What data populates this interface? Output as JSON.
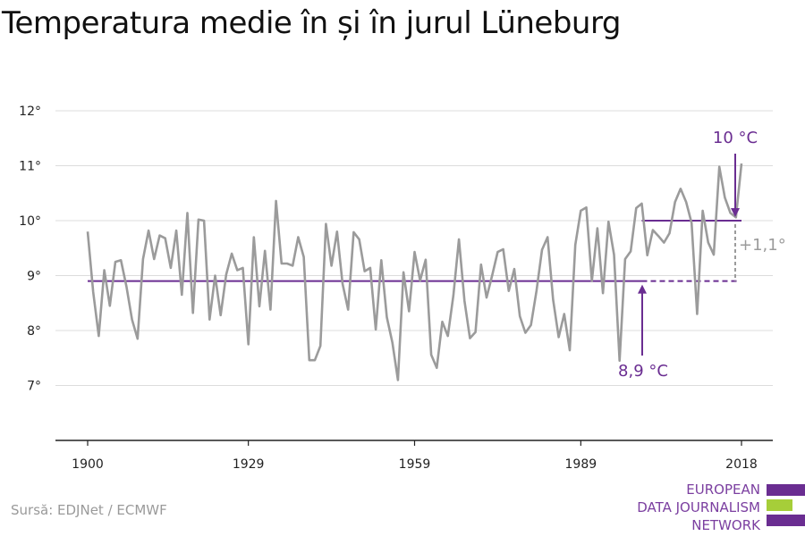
{
  "title": "Temperatura medie în și în jurul Lüneburg",
  "source": "Sursă: EDJNet / ECMWF",
  "logo": {
    "lines": [
      "EUROPEAN",
      "DATA JOURNALISM",
      "NETWORK"
    ]
  },
  "colors": {
    "series": "#9b9b9b",
    "accent": "#6a2d91",
    "grid": "#dcdcdc",
    "axis": "#222222",
    "logo_green": "#a6ce39"
  },
  "chart_data": {
    "type": "line",
    "title": "Temperatura medie în și în jurul Lüneburg",
    "xlabel": "",
    "ylabel": "",
    "xlim": [
      1900,
      2018
    ],
    "ylim": [
      6,
      12
    ],
    "xticks": [
      1900,
      1929,
      1959,
      1989,
      2018
    ],
    "yticks": [
      7,
      8,
      9,
      10,
      11,
      12
    ],
    "ytick_labels": [
      "7°",
      "8°",
      "9°",
      "10°",
      "11°",
      "12°"
    ],
    "grid": true,
    "series": [
      {
        "values_x": [
          1900,
          1901,
          1902,
          1903,
          1904,
          1905,
          1906,
          1907,
          1908,
          1909,
          1910,
          1911,
          1912,
          1913,
          1914,
          1915,
          1916,
          1917,
          1918,
          1919,
          1920,
          1921,
          1922,
          1923,
          1924,
          1925,
          1926,
          1927,
          1928,
          1929,
          1930,
          1931,
          1932,
          1933,
          1934,
          1935,
          1936,
          1937,
          1938,
          1939,
          1940,
          1941,
          1942,
          1943,
          1944,
          1945,
          1946,
          1947,
          1948,
          1949,
          1950,
          1951,
          1952,
          1953,
          1954,
          1955,
          1956,
          1957,
          1958,
          1959,
          1960,
          1961,
          1962,
          1963,
          1964,
          1965,
          1966,
          1967,
          1968,
          1969,
          1970,
          1971,
          1972,
          1973,
          1974,
          1975,
          1976,
          1977,
          1978,
          1979,
          1980,
          1981,
          1982,
          1983,
          1984,
          1985,
          1986,
          1987,
          1988,
          1989,
          1990,
          1991,
          1992,
          1993,
          1994,
          1995,
          1996,
          1997,
          1998,
          1999,
          2000,
          2001,
          2002,
          2003,
          2004,
          2005,
          2006,
          2007,
          2008,
          2009,
          2010,
          2011,
          2012,
          2013,
          2014,
          2015,
          2016,
          2017,
          2018
        ],
        "values": [
          9.8,
          8.7,
          7.9,
          9.1,
          8.45,
          9.25,
          9.28,
          8.8,
          8.2,
          7.85,
          9.3,
          9.82,
          9.3,
          9.73,
          9.68,
          9.14,
          9.82,
          8.65,
          10.14,
          8.32,
          10.02,
          10.0,
          8.2,
          9.0,
          8.28,
          9.02,
          9.4,
          9.1,
          9.14,
          7.75,
          9.7,
          8.44,
          9.45,
          8.38,
          10.36,
          9.22,
          9.22,
          9.18,
          9.7,
          9.34,
          7.46,
          7.46,
          7.72,
          9.94,
          9.18,
          9.8,
          8.85,
          8.38,
          9.79,
          9.66,
          9.08,
          9.14,
          8.02,
          9.28,
          8.24,
          7.78,
          7.1,
          9.06,
          8.35,
          9.43,
          8.91,
          9.29,
          7.56,
          7.32,
          8.16,
          7.9,
          8.64,
          9.66,
          8.54,
          7.86,
          7.97,
          9.2,
          8.6,
          9.0,
          9.43,
          9.48,
          8.72,
          9.12,
          8.26,
          7.96,
          8.1,
          8.72,
          9.47,
          9.7,
          8.56,
          7.88,
          8.3,
          7.64,
          9.56,
          10.18,
          10.24,
          8.9,
          9.86,
          8.68,
          9.98,
          9.38,
          7.45,
          9.3,
          9.44,
          10.23,
          10.31,
          9.37,
          9.83,
          9.72,
          9.6,
          9.77,
          10.34,
          10.58,
          10.34,
          9.96,
          8.3,
          10.18,
          9.6,
          9.38,
          10.98,
          10.42,
          10.14,
          10.06,
          11.04
        ]
      }
    ],
    "annotations": {
      "baseline": {
        "value": 8.9,
        "label": "8,9 °C",
        "period": [
          1900,
          2000
        ]
      },
      "recent": {
        "value": 10.0,
        "label": "10 °C",
        "period": [
          2000,
          2018
        ]
      },
      "difference": {
        "label": "+1,1°"
      }
    }
  }
}
